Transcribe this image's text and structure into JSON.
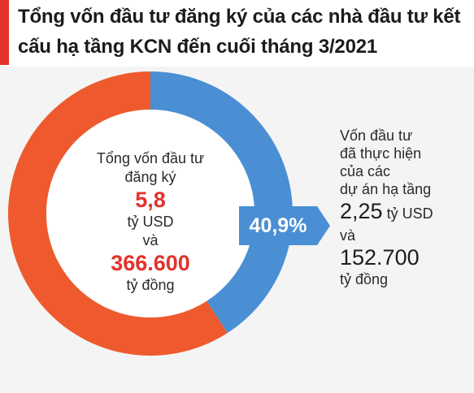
{
  "header": {
    "title": "Tổng vốn đầu tư đăng ký của các nhà đầu tư kết cấu hạ tầng KCN đến cuối tháng 3/2021"
  },
  "chart_data": {
    "type": "pie",
    "donut": true,
    "title": "Tổng vốn đầu tư đăng ký của các nhà đầu tư kết cấu hạ tầng KCN đến cuối tháng 3/2021",
    "slices": [
      {
        "label": "Vốn đầu tư đã thực hiện",
        "percent": 40.9,
        "color": "#4a8fd4"
      },
      {
        "label": "",
        "percent": 59.1,
        "color": "#ee5a2d"
      }
    ],
    "center": {
      "line1": "Tổng vốn đầu tư",
      "line2": "đăng ký",
      "usd_value": "5,8",
      "usd_unit": "tỷ USD",
      "and": "và",
      "vnd_value": "366.600",
      "vnd_unit": "tỷ đồng"
    },
    "callout": {
      "percent_label": "40,9%",
      "line1": "Vốn đầu tư",
      "line2": "đã thực hiện",
      "line3": "của các",
      "line4": "dự án hạ tầng",
      "usd_value": "2,25",
      "usd_unit": "tỷ USD",
      "and": "và",
      "vnd_value": "152.700",
      "vnd_unit": "tỷ đồng"
    }
  }
}
